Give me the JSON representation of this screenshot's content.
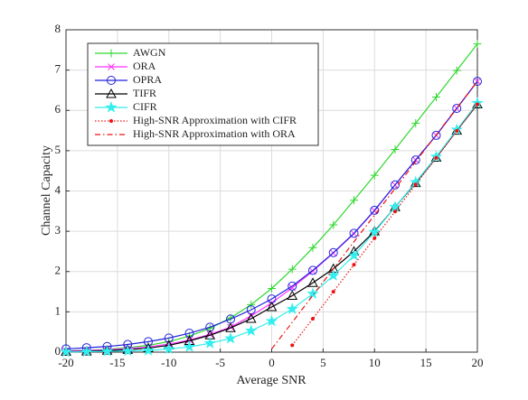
{
  "chart_data": {
    "type": "line",
    "xlabel": "Average SNR",
    "ylabel": "Channel Capacity",
    "x": [
      -20,
      -18,
      -16,
      -14,
      -12,
      -10,
      -8,
      -6,
      -4,
      -2,
      0,
      2,
      4,
      6,
      8,
      10,
      12,
      14,
      16,
      18,
      20
    ],
    "xlim": [
      -20,
      20
    ],
    "xticks": [
      -20,
      -15,
      -10,
      -5,
      0,
      5,
      10,
      15,
      20
    ],
    "ylim": [
      0,
      8
    ],
    "yticks": [
      0,
      1,
      2,
      3,
      4,
      5,
      6,
      7,
      8
    ],
    "grid": true,
    "legend": "upper left",
    "series": [
      {
        "name": "AWGN",
        "color": "#2ed82e",
        "marker": "plus",
        "dash": "solid",
        "values": [
          0.03,
          0.045,
          0.07,
          0.11,
          0.17,
          0.26,
          0.4,
          0.59,
          0.85,
          1.18,
          1.58,
          2.06,
          2.59,
          3.16,
          3.77,
          4.39,
          5.03,
          5.68,
          6.33,
          6.99,
          7.65
        ]
      },
      {
        "name": "ORA",
        "color": "#ff33ff",
        "marker": "x",
        "dash": "solid",
        "values": [
          0.03,
          0.04,
          0.06,
          0.09,
          0.13,
          0.2,
          0.3,
          0.44,
          0.62,
          0.9,
          1.22,
          1.6,
          2.01,
          2.46,
          2.94,
          3.51,
          4.15,
          4.77,
          5.38,
          6.05,
          6.72
        ]
      },
      {
        "name": "OPRA",
        "color": "#2222dd",
        "marker": "circle",
        "dash": "solid",
        "values": [
          0.08,
          0.11,
          0.14,
          0.19,
          0.26,
          0.35,
          0.47,
          0.62,
          0.82,
          1.05,
          1.32,
          1.64,
          2.03,
          2.47,
          2.95,
          3.52,
          4.15,
          4.77,
          5.38,
          6.05,
          6.72
        ]
      },
      {
        "name": "TIFR",
        "color": "#000000",
        "marker": "triangle",
        "dash": "solid",
        "values": [
          0.015,
          0.02,
          0.04,
          0.06,
          0.1,
          0.17,
          0.28,
          0.42,
          0.6,
          0.83,
          1.12,
          1.4,
          1.72,
          2.07,
          2.5,
          3.0,
          3.6,
          4.2,
          4.83,
          5.5,
          6.15
        ]
      },
      {
        "name": "CIFR",
        "color": "#33eeee",
        "marker": "star",
        "dash": "solid",
        "values": [
          0.006,
          0.01,
          0.02,
          0.03,
          0.04,
          0.08,
          0.13,
          0.22,
          0.34,
          0.53,
          0.77,
          1.07,
          1.45,
          1.9,
          2.4,
          2.98,
          3.6,
          4.22,
          4.85,
          5.52,
          6.18
        ]
      },
      {
        "name": "High-SNR Approximation with CIFR",
        "color": "#ee1111",
        "marker": "dot",
        "dash": "dotted",
        "values": [
          null,
          null,
          null,
          null,
          null,
          null,
          null,
          null,
          null,
          null,
          null,
          0.17,
          0.83,
          1.5,
          2.17,
          2.83,
          3.49,
          4.16,
          4.82,
          5.49,
          6.15
        ]
      },
      {
        "name": "High-SNR Approximation with ORA",
        "color": "#ee1111",
        "marker": "none",
        "dash": "dashdot",
        "values": [
          null,
          null,
          null,
          null,
          null,
          null,
          null,
          null,
          null,
          null,
          0.08,
          0.74,
          1.41,
          2.07,
          2.74,
          3.4,
          4.06,
          4.73,
          5.39,
          6.06,
          6.72
        ]
      }
    ]
  }
}
